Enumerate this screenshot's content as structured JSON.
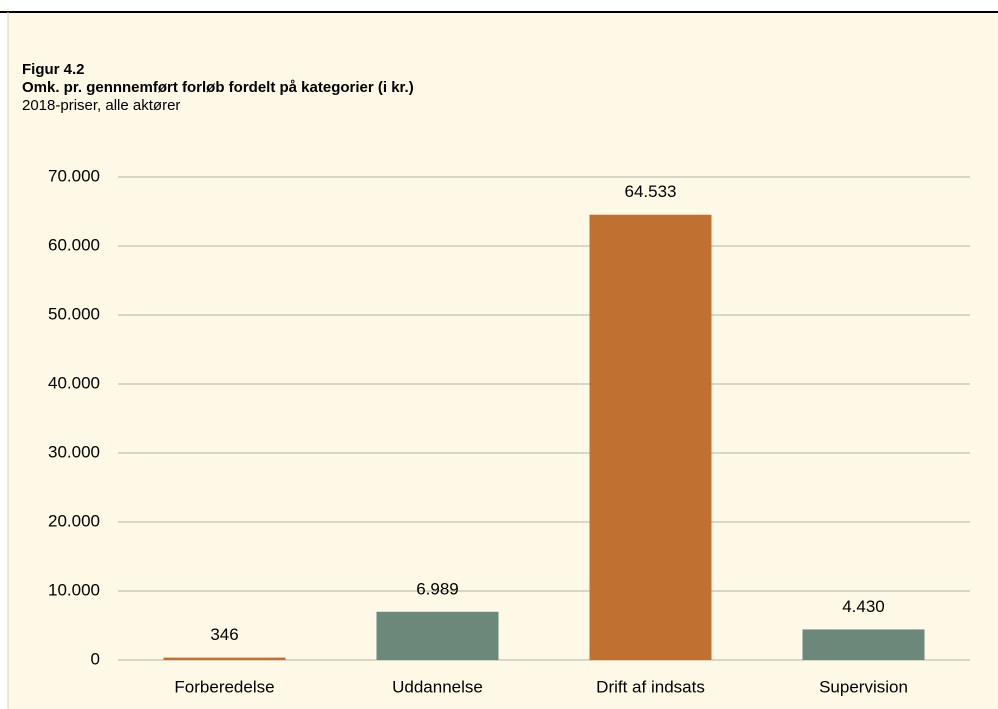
{
  "chart_data": {
    "type": "bar",
    "title": "Figur 4.2",
    "subtitle": "Omk. pr. gennnemført forløb fordelt på kategorier (i kr.)",
    "note": "2018-priser, alle aktører",
    "categories": [
      "Forberedelse",
      "Uddannelse",
      "Drift af indsats",
      "Supervision"
    ],
    "values": [
      346,
      6989,
      64533,
      4430
    ],
    "value_labels": [
      "346",
      "6.989",
      "64.533",
      "4.430"
    ],
    "colors": [
      "#c07131",
      "#6c887a",
      "#c07131",
      "#6c887a"
    ],
    "ylim": [
      0,
      70000
    ],
    "yticks": [
      0,
      {
        "value": 10000,
        "label": "10.000"
      },
      {
        "value": 20000,
        "label": "20.000"
      },
      {
        "value": 30000,
        "label": "30.000"
      },
      {
        "value": 40000,
        "label": "40.000"
      },
      {
        "value": 50000,
        "label": "50.000"
      },
      {
        "value": 60000,
        "label": "60.000"
      },
      {
        "value": 70000,
        "label": "70.000"
      }
    ],
    "grid": true
  }
}
